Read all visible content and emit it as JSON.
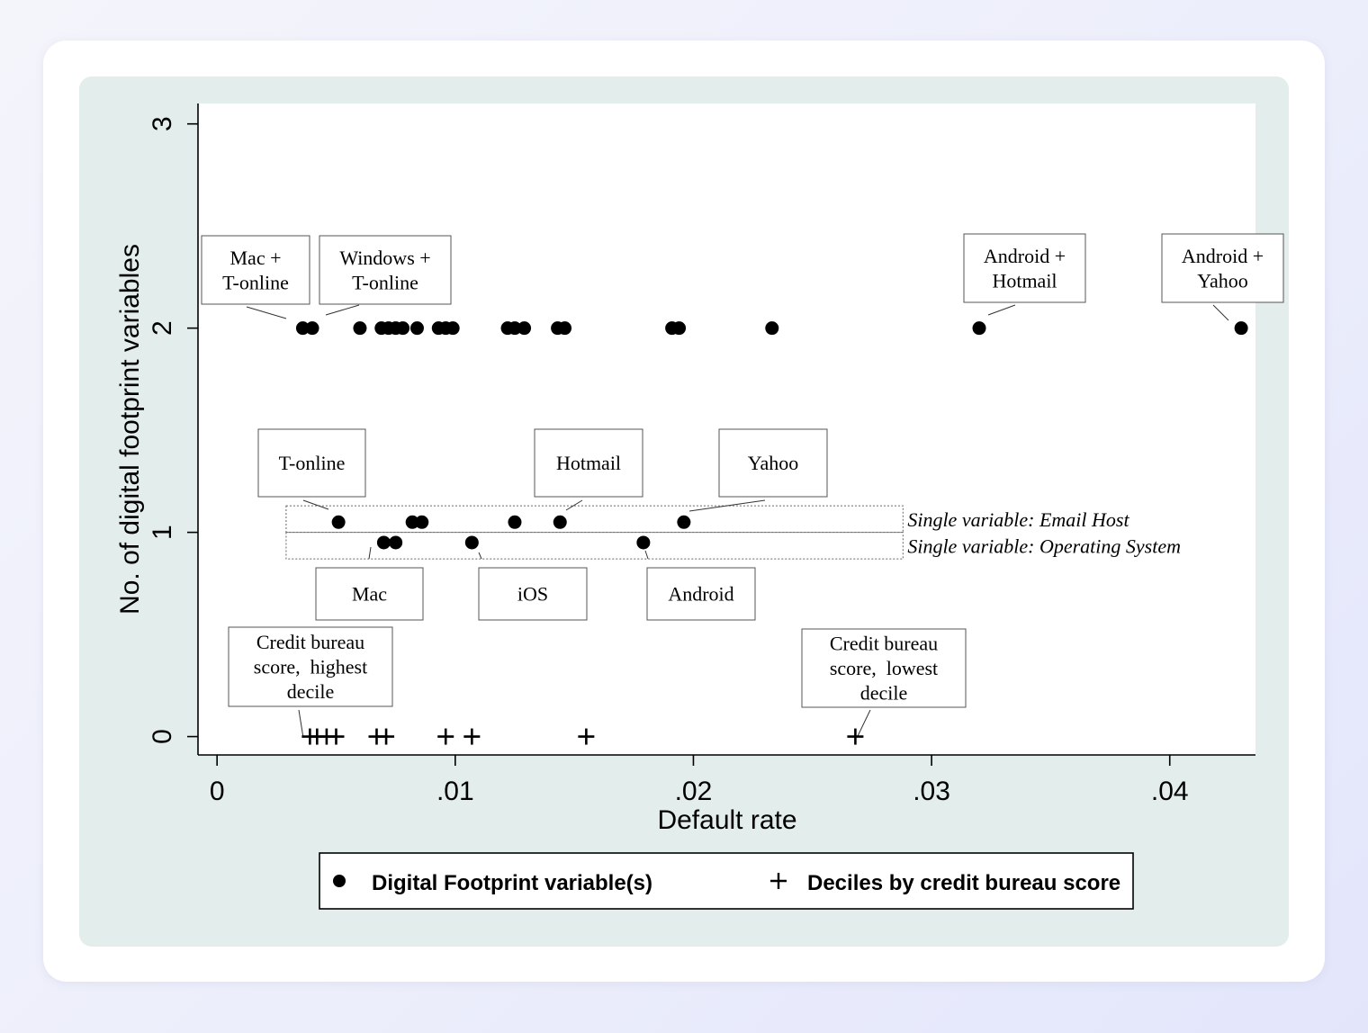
{
  "chart_data": {
    "type": "scatter",
    "xlabel": "Default rate",
    "ylabel": "No. of digital footprint variables",
    "xlim": [
      -0.0008,
      0.0436
    ],
    "ylim": [
      -0.09,
      3.1
    ],
    "xticks": [
      {
        "value": 0,
        "label": "0"
      },
      {
        "value": 0.01,
        "label": ".01"
      },
      {
        "value": 0.02,
        "label": ".02"
      },
      {
        "value": 0.03,
        "label": ".03"
      },
      {
        "value": 0.04,
        "label": ".04"
      }
    ],
    "yticks": [
      {
        "value": 0,
        "label": "0"
      },
      {
        "value": 1,
        "label": "1"
      },
      {
        "value": 2,
        "label": "2"
      },
      {
        "value": 3,
        "label": "3"
      }
    ],
    "grid": false,
    "legend_position": "bottom",
    "series": [
      {
        "name": "Digital Footprint variable(s)",
        "marker": "circle",
        "points": [
          {
            "x": 0.0036,
            "y": 2
          },
          {
            "x": 0.004,
            "y": 2
          },
          {
            "x": 0.006,
            "y": 2
          },
          {
            "x": 0.0069,
            "y": 2
          },
          {
            "x": 0.0072,
            "y": 2
          },
          {
            "x": 0.0075,
            "y": 2
          },
          {
            "x": 0.0078,
            "y": 2
          },
          {
            "x": 0.0084,
            "y": 2
          },
          {
            "x": 0.0093,
            "y": 2
          },
          {
            "x": 0.0096,
            "y": 2
          },
          {
            "x": 0.0099,
            "y": 2
          },
          {
            "x": 0.0122,
            "y": 2
          },
          {
            "x": 0.0125,
            "y": 2
          },
          {
            "x": 0.0129,
            "y": 2
          },
          {
            "x": 0.0143,
            "y": 2
          },
          {
            "x": 0.0146,
            "y": 2
          },
          {
            "x": 0.0191,
            "y": 2
          },
          {
            "x": 0.0194,
            "y": 2
          },
          {
            "x": 0.0233,
            "y": 2
          },
          {
            "x": 0.032,
            "y": 2
          },
          {
            "x": 0.043,
            "y": 2
          },
          {
            "x": 0.0051,
            "y": 1.05
          },
          {
            "x": 0.0082,
            "y": 1.05
          },
          {
            "x": 0.0086,
            "y": 1.05
          },
          {
            "x": 0.0125,
            "y": 1.05
          },
          {
            "x": 0.0144,
            "y": 1.05
          },
          {
            "x": 0.0196,
            "y": 1.05
          },
          {
            "x": 0.007,
            "y": 0.95
          },
          {
            "x": 0.0075,
            "y": 0.95
          },
          {
            "x": 0.0107,
            "y": 0.95
          },
          {
            "x": 0.0179,
            "y": 0.95
          }
        ]
      },
      {
        "name": "Deciles by credit bureau score",
        "marker": "plus",
        "points": [
          {
            "x": 0.0039,
            "y": 0
          },
          {
            "x": 0.0042,
            "y": 0
          },
          {
            "x": 0.0046,
            "y": 0
          },
          {
            "x": 0.005,
            "y": 0
          },
          {
            "x": 0.0067,
            "y": 0
          },
          {
            "x": 0.0071,
            "y": 0
          },
          {
            "x": 0.0096,
            "y": 0
          },
          {
            "x": 0.0107,
            "y": 0
          },
          {
            "x": 0.0155,
            "y": 0
          },
          {
            "x": 0.0268,
            "y": 0
          }
        ]
      }
    ],
    "annotations": [
      {
        "lines": [
          "Mac +",
          "T-online"
        ],
        "target": {
          "x": 0.0036,
          "y": 2
        }
      },
      {
        "lines": [
          "Windows +",
          "T-online"
        ],
        "target": {
          "x": 0.004,
          "y": 2
        }
      },
      {
        "lines": [
          "Android +",
          "Hotmail"
        ],
        "target": {
          "x": 0.032,
          "y": 2
        }
      },
      {
        "lines": [
          "Android +",
          "Yahoo"
        ],
        "target": {
          "x": 0.043,
          "y": 2
        }
      },
      {
        "lines": [
          "T-online"
        ],
        "target": {
          "x": 0.0051,
          "y": 1.05
        }
      },
      {
        "lines": [
          "Hotmail"
        ],
        "target": {
          "x": 0.0144,
          "y": 1.05
        }
      },
      {
        "lines": [
          "Yahoo"
        ],
        "target": {
          "x": 0.0196,
          "y": 1.05
        }
      },
      {
        "lines": [
          "Mac"
        ],
        "target": {
          "x": 0.007,
          "y": 0.95
        }
      },
      {
        "lines": [
          "iOS"
        ],
        "target": {
          "x": 0.0107,
          "y": 0.95
        }
      },
      {
        "lines": [
          "Android"
        ],
        "target": {
          "x": 0.0179,
          "y": 0.95
        }
      },
      {
        "lines": [
          "Credit bureau",
          "score,  highest",
          "decile"
        ],
        "target": {
          "x": 0.0036,
          "y": 0
        }
      },
      {
        "lines": [
          "Credit bureau",
          "score,  lowest",
          "decile"
        ],
        "target": {
          "x": 0.0268,
          "y": 0
        }
      }
    ],
    "group_labels": [
      {
        "text": "Single variable: Email Host",
        "y_range": [
          1.0,
          1.13
        ]
      },
      {
        "text": "Single variable: Operating System",
        "y_range": [
          0.87,
          1.0
        ]
      }
    ]
  }
}
